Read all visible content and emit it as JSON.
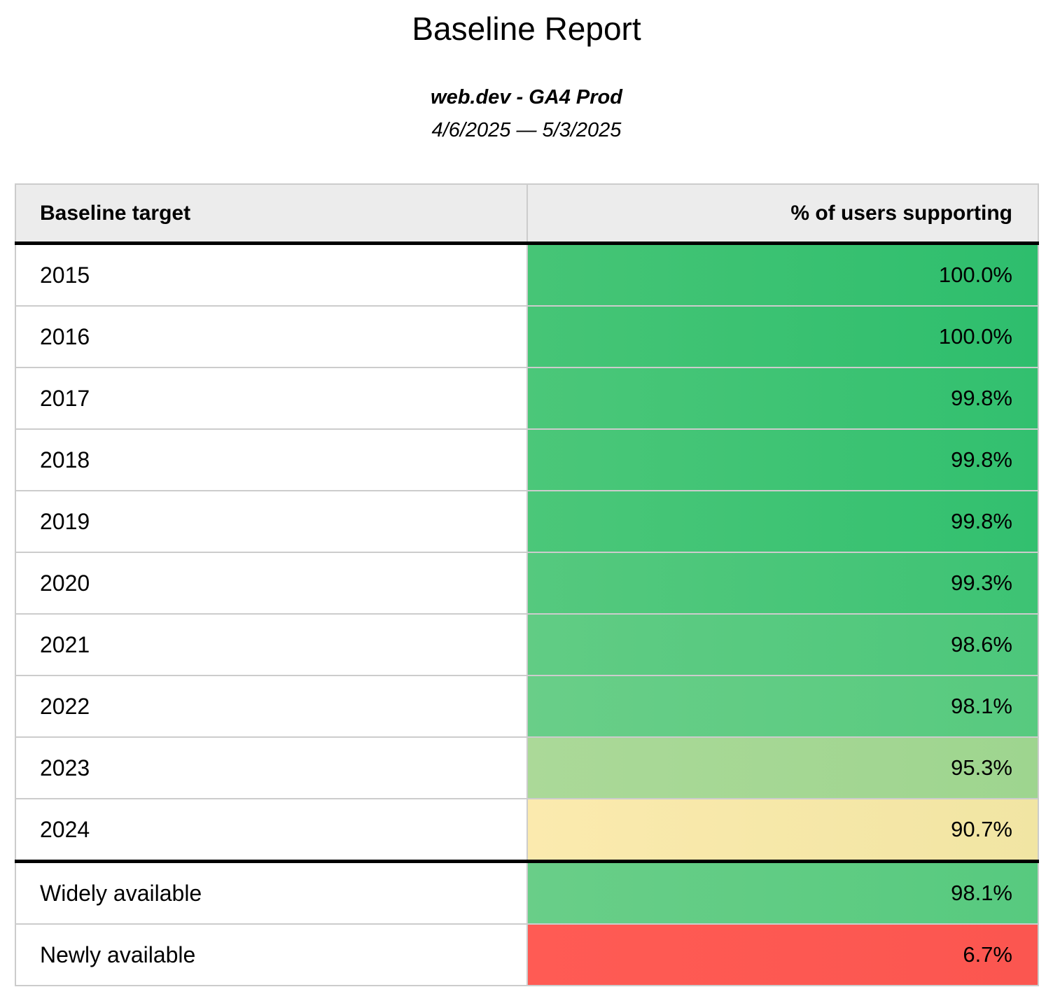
{
  "report": {
    "title": "Baseline Report",
    "property": "web.dev - GA4 Prod",
    "date_range": "4/6/2025 — 5/3/2025"
  },
  "table": {
    "columns": {
      "target": "Baseline target",
      "percent": "% of users supporting"
    },
    "rows": [
      {
        "target": "2015",
        "value": "100.0%",
        "color_left": "#46c576",
        "color_right": "#2ebe6d"
      },
      {
        "target": "2016",
        "value": "100.0%",
        "color_left": "#46c576",
        "color_right": "#2ebe6d"
      },
      {
        "target": "2017",
        "value": "99.8%",
        "color_left": "#4bc779",
        "color_right": "#32c06f"
      },
      {
        "target": "2018",
        "value": "99.8%",
        "color_left": "#4bc779",
        "color_right": "#32c06f"
      },
      {
        "target": "2019",
        "value": "99.8%",
        "color_left": "#4bc779",
        "color_right": "#32c06f"
      },
      {
        "target": "2020",
        "value": "99.3%",
        "color_left": "#55c97e",
        "color_right": "#3dc374"
      },
      {
        "target": "2021",
        "value": "98.6%",
        "color_left": "#61cc84",
        "color_right": "#4cc77b"
      },
      {
        "target": "2022",
        "value": "98.1%",
        "color_left": "#69ce88",
        "color_right": "#57ca7f"
      },
      {
        "target": "2023",
        "value": "95.3%",
        "color_left": "#abd998",
        "color_right": "#9ed58f"
      },
      {
        "target": "2024",
        "value": "90.7%",
        "color_left": "#fbeaae",
        "color_right": "#f1e5a3"
      },
      {
        "target": "Widely available",
        "value": "98.1%",
        "color_left": "#69ce88",
        "color_right": "#57ca7f",
        "divider": true
      },
      {
        "target": "Newly available",
        "value": "6.7%",
        "color_left": "#ff5b54",
        "color_right": "#fb5650"
      }
    ],
    "status_colors": {
      "good_green": "#2ebe6d",
      "warn_yellow": "#f5e7a6",
      "bad_red": "#ff5b54",
      "header_gray": "#ececec",
      "grid_gray": "#cccccc",
      "divider_black": "#000000"
    }
  }
}
